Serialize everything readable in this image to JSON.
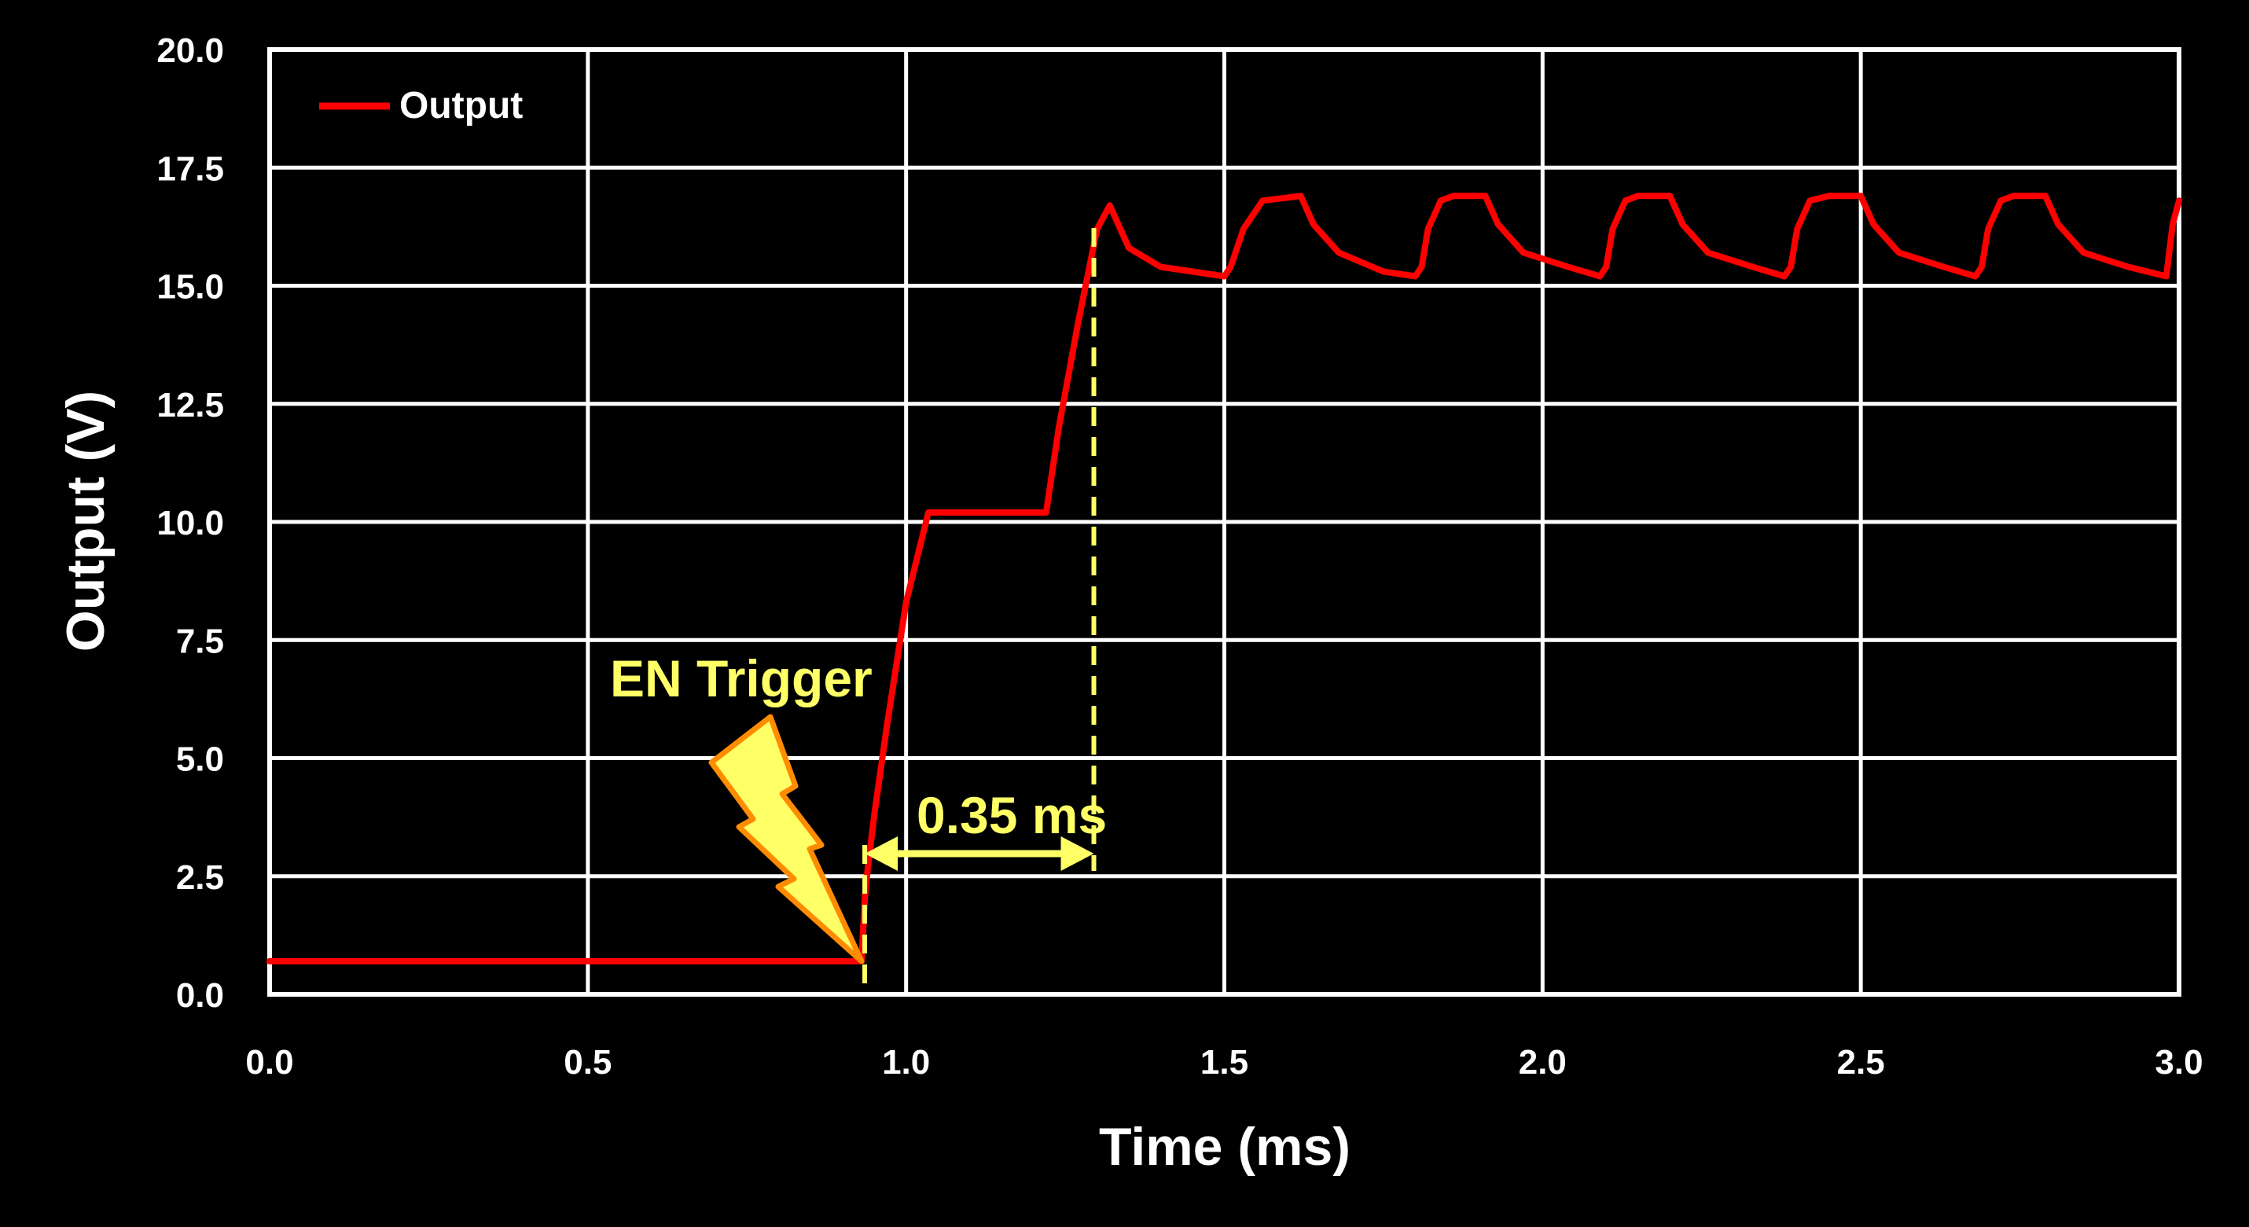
{
  "chart_data": {
    "type": "line",
    "xlabel": "Time (ms)",
    "ylabel": "Output (V)",
    "xlim": [
      0,
      3.0
    ],
    "ylim": [
      0,
      20.0
    ],
    "x_ticks": [
      "0.0",
      "0.5",
      "1.0",
      "1.5",
      "2.0",
      "2.5",
      "3.0"
    ],
    "y_ticks": [
      "0.0",
      "2.5",
      "5.0",
      "7.5",
      "10.0",
      "12.5",
      "15.0",
      "17.5",
      "20.0"
    ],
    "grid": true,
    "legend": {
      "position": "top-left",
      "entries": [
        "Output"
      ]
    },
    "series": [
      {
        "name": "Output",
        "color": "#ff0000",
        "x": [
          0.0,
          0.93,
          0.935,
          0.94,
          0.95,
          0.97,
          1.0,
          1.035,
          1.05,
          1.1,
          1.15,
          1.2,
          1.22,
          1.24,
          1.27,
          1.3,
          1.32,
          1.33,
          1.35,
          1.4,
          1.45,
          1.5,
          1.51,
          1.53,
          1.56,
          1.62,
          1.64,
          1.68,
          1.75,
          1.8,
          1.81,
          1.82,
          1.84,
          1.86,
          1.91,
          1.93,
          1.97,
          2.04,
          2.09,
          2.1,
          2.11,
          2.13,
          2.15,
          2.2,
          2.22,
          2.26,
          2.33,
          2.38,
          2.39,
          2.4,
          2.42,
          2.45,
          2.5,
          2.52,
          2.56,
          2.63,
          2.68,
          2.69,
          2.7,
          2.72,
          2.74,
          2.79,
          2.81,
          2.85,
          2.92,
          2.98,
          2.99,
          3.0
        ],
        "y": [
          0.7,
          0.7,
          2.0,
          2.7,
          3.8,
          5.7,
          8.3,
          10.2,
          10.2,
          10.2,
          10.2,
          10.2,
          10.2,
          12.0,
          14.2,
          16.2,
          16.7,
          16.4,
          15.8,
          15.4,
          15.3,
          15.2,
          15.4,
          16.2,
          16.8,
          16.9,
          16.3,
          15.7,
          15.3,
          15.2,
          15.4,
          16.2,
          16.8,
          16.9,
          16.9,
          16.3,
          15.7,
          15.4,
          15.2,
          15.4,
          16.2,
          16.8,
          16.9,
          16.9,
          16.3,
          15.7,
          15.4,
          15.2,
          15.4,
          16.2,
          16.8,
          16.9,
          16.9,
          16.3,
          15.7,
          15.4,
          15.2,
          15.4,
          16.2,
          16.8,
          16.9,
          16.9,
          16.3,
          15.7,
          15.4,
          15.2,
          16.3,
          16.8
        ]
      }
    ],
    "annotations": {
      "trigger_label": "EN Trigger",
      "trigger_time": 0.935,
      "end_time": 1.295,
      "delta_label": "0.35 ms",
      "marker_color": "#ffff66",
      "bolt_fill": "#ffff66",
      "bolt_stroke": "#ff8c00"
    }
  }
}
